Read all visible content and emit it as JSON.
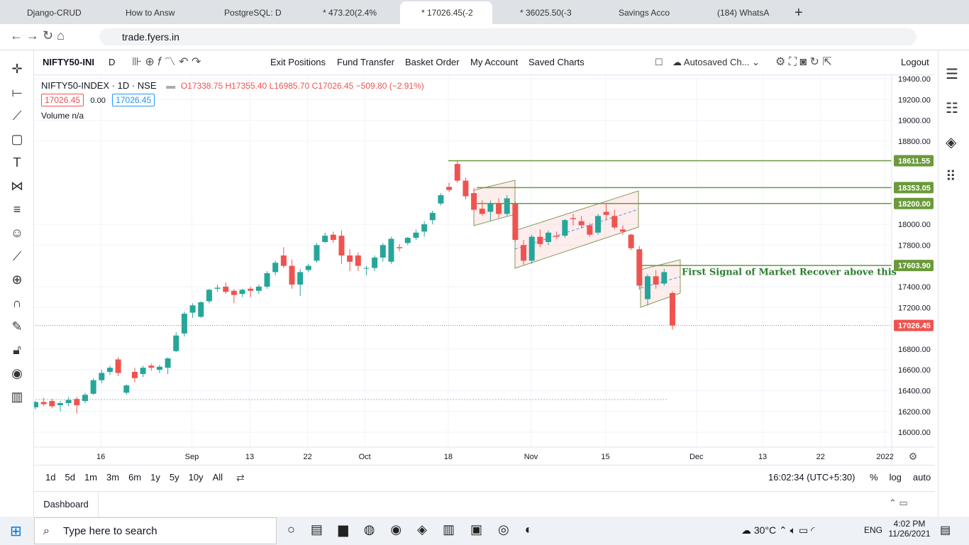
{
  "browser": {
    "tabs": [
      "Django-CRUD",
      "How to Answ",
      "PostgreSQL: D",
      "* 473.20(2.4%",
      "* 17026.45(-2",
      "* 36025.50(-3",
      "Savings Acco",
      "(184) WhatsA"
    ],
    "url": "trade.fyers.in"
  },
  "toolbar": {
    "symbol": "NIFTY50-INI",
    "interval": "D",
    "buttons": [
      "Exit Positions",
      "Fund Transfer",
      "Basket Order",
      "My Account",
      "Saved Charts"
    ],
    "autosave": "Autosaved Ch...",
    "logout": "Logout"
  },
  "legend": {
    "title": "NIFTY50-INDEX · 1D · NSE",
    "ohlc": "O17338.75 H17355.40 L16985.70 C17026.45 −509.80 (−2.91%)",
    "bid": "17026.45",
    "spread": "0.00",
    "ask": "17026.45",
    "volume": "Volume  n/a"
  },
  "chart_data": {
    "type": "candlestick",
    "annotation": "First Signal of Market Recover above this",
    "series": [
      {
        "name": "NIFTY50-INDEX",
        "up_color": "#26a69a",
        "down_color": "#ef5350",
        "values": [
          [
            16240,
            16300,
            16220,
            16290
          ],
          [
            16290,
            16330,
            16250,
            16270
          ],
          [
            16300,
            16320,
            16230,
            16250
          ],
          [
            16260,
            16300,
            16200,
            16280
          ],
          [
            16280,
            16340,
            16250,
            16310
          ],
          [
            16320,
            16340,
            16180,
            16260
          ],
          [
            16300,
            16380,
            16280,
            16360
          ],
          [
            16370,
            16520,
            16360,
            16500
          ],
          [
            16500,
            16600,
            16470,
            16570
          ],
          [
            16580,
            16640,
            16550,
            16620
          ],
          [
            16700,
            16720,
            16540,
            16570
          ],
          [
            16380,
            16460,
            16360,
            16450
          ],
          [
            16580,
            16620,
            16480,
            16520
          ],
          [
            16560,
            16640,
            16530,
            16620
          ],
          [
            16640,
            16660,
            16590,
            16620
          ],
          [
            16600,
            16650,
            16570,
            16630
          ],
          [
            16620,
            16720,
            16560,
            16710
          ],
          [
            16780,
            16960,
            16770,
            16930
          ],
          [
            16950,
            17160,
            16920,
            17140
          ],
          [
            17150,
            17240,
            17100,
            17220
          ],
          [
            17110,
            17260,
            17100,
            17250
          ],
          [
            17260,
            17380,
            17240,
            17370
          ],
          [
            17380,
            17420,
            17350,
            17390
          ],
          [
            17400,
            17440,
            17330,
            17350
          ],
          [
            17360,
            17380,
            17240,
            17320
          ],
          [
            17330,
            17380,
            17300,
            17370
          ],
          [
            17380,
            17400,
            17300,
            17360
          ],
          [
            17360,
            17420,
            17330,
            17400
          ],
          [
            17400,
            17550,
            17380,
            17530
          ],
          [
            17540,
            17650,
            17510,
            17630
          ],
          [
            17700,
            17780,
            17580,
            17600
          ],
          [
            17600,
            17660,
            17380,
            17420
          ],
          [
            17420,
            17570,
            17310,
            17540
          ],
          [
            17560,
            17620,
            17540,
            17600
          ],
          [
            17650,
            17820,
            17630,
            17800
          ],
          [
            17830,
            17920,
            17820,
            17890
          ],
          [
            17900,
            17930,
            17820,
            17850
          ],
          [
            17890,
            17940,
            17620,
            17700
          ],
          [
            17700,
            17760,
            17550,
            17640
          ],
          [
            17700,
            17730,
            17550,
            17600
          ],
          [
            17580,
            17600,
            17510,
            17580
          ],
          [
            17580,
            17700,
            17550,
            17680
          ],
          [
            17680,
            17820,
            17640,
            17800
          ],
          [
            17640,
            17880,
            17620,
            17860
          ],
          [
            17780,
            17810,
            17740,
            17770
          ],
          [
            17820,
            17880,
            17800,
            17870
          ],
          [
            17870,
            17950,
            17850,
            17920
          ],
          [
            17930,
            18030,
            17880,
            18000
          ],
          [
            18040,
            18130,
            18000,
            18110
          ],
          [
            18200,
            18300,
            18180,
            18280
          ],
          [
            18360,
            18400,
            18310,
            18330
          ],
          [
            18580,
            18610,
            18400,
            18420
          ],
          [
            18420,
            18450,
            18240,
            18270
          ],
          [
            18300,
            18350,
            18120,
            18140
          ],
          [
            18150,
            18230,
            18080,
            18100
          ],
          [
            18120,
            18230,
            18030,
            18200
          ],
          [
            18200,
            18250,
            18060,
            18100
          ],
          [
            18100,
            18280,
            18080,
            18250
          ],
          [
            18200,
            18220,
            17830,
            17850
          ],
          [
            17800,
            17850,
            17610,
            17650
          ],
          [
            17650,
            17900,
            17620,
            17880
          ],
          [
            17880,
            17950,
            17780,
            17810
          ],
          [
            17830,
            17940,
            17800,
            17920
          ],
          [
            17890,
            17930,
            17860,
            17880
          ],
          [
            17890,
            18050,
            17870,
            18040
          ],
          [
            18060,
            18100,
            17990,
            18050
          ],
          [
            18030,
            18080,
            17960,
            17990
          ],
          [
            17990,
            18010,
            17880,
            17900
          ],
          [
            17920,
            18100,
            17900,
            18080
          ],
          [
            18120,
            18200,
            18050,
            18090
          ],
          [
            18080,
            18140,
            17950,
            17970
          ],
          [
            17950,
            17990,
            17900,
            17930
          ],
          [
            17900,
            17910,
            17750,
            17770
          ],
          [
            17760,
            17790,
            17370,
            17410
          ],
          [
            17280,
            17520,
            17220,
            17500
          ],
          [
            17500,
            17560,
            17380,
            17420
          ],
          [
            17430,
            17570,
            17410,
            17540
          ],
          [
            17338.75,
            17355.4,
            16985.7,
            17026.45
          ]
        ]
      }
    ],
    "xlim": [
      0,
      103.5
    ],
    "ylim": [
      15857,
      19434
    ],
    "xticks": [
      {
        "value": 7.9,
        "label": "16"
      },
      {
        "value": 18.9,
        "label": "Sep"
      },
      {
        "value": 25.9,
        "label": "13"
      },
      {
        "value": 32.9,
        "label": "22"
      },
      {
        "value": 39.8,
        "label": "Oct"
      },
      {
        "value": 49.9,
        "label": "18"
      },
      {
        "value": 59.9,
        "label": "Nov"
      },
      {
        "value": 68.9,
        "label": "15"
      },
      {
        "value": 79.9,
        "label": "Dec"
      },
      {
        "value": 87.9,
        "label": "13"
      },
      {
        "value": 94.9,
        "label": "22"
      },
      {
        "value": 102.7,
        "label": "2022"
      }
    ],
    "yticks": [
      {
        "value": 16000,
        "label": "16000.00"
      },
      {
        "value": 16200,
        "label": "16200.00"
      },
      {
        "value": 16400,
        "label": "16400.00"
      },
      {
        "value": 16600,
        "label": "16600.00"
      },
      {
        "value": 16800,
        "label": "16800.00"
      },
      {
        "value": 17200,
        "label": "17200.00"
      },
      {
        "value": 17400,
        "label": "17400.00"
      },
      {
        "value": 17800,
        "label": "17800.00"
      },
      {
        "value": 18000,
        "label": "18000.00"
      },
      {
        "value": 18800,
        "label": "18800.00"
      },
      {
        "value": 19000,
        "label": "19000.00"
      },
      {
        "value": 19200,
        "label": "19200.00"
      },
      {
        "value": 19400,
        "label": "19400.00"
      }
    ],
    "levels": [
      {
        "value": 18611.55,
        "label": "18611.55",
        "color": "#6a9a3a"
      },
      {
        "value": 18353.05,
        "label": "18353.05",
        "color": "#6a9a3a"
      },
      {
        "value": 18200,
        "label": "18200.00",
        "color": "#6a9a3a"
      },
      {
        "value": 17603.9,
        "label": "17603.90",
        "color": "#6a9a3a"
      },
      {
        "value": 17026.45,
        "label": "17026.45",
        "color": "#ef5350",
        "dash": true
      }
    ],
    "grid": true
  },
  "bottom": {
    "periods": [
      "1d",
      "5d",
      "1m",
      "3m",
      "6m",
      "1y",
      "5y",
      "10y",
      "All"
    ],
    "clock": "16:02:34 (UTC+5:30)",
    "options": [
      "%",
      "log",
      "auto"
    ],
    "dashboard": "Dashboard"
  },
  "taskbar": {
    "search": "Type here to search",
    "weather": "30°C",
    "lang": "ENG",
    "time": "4:02 PM",
    "date": "11/26/2021"
  }
}
